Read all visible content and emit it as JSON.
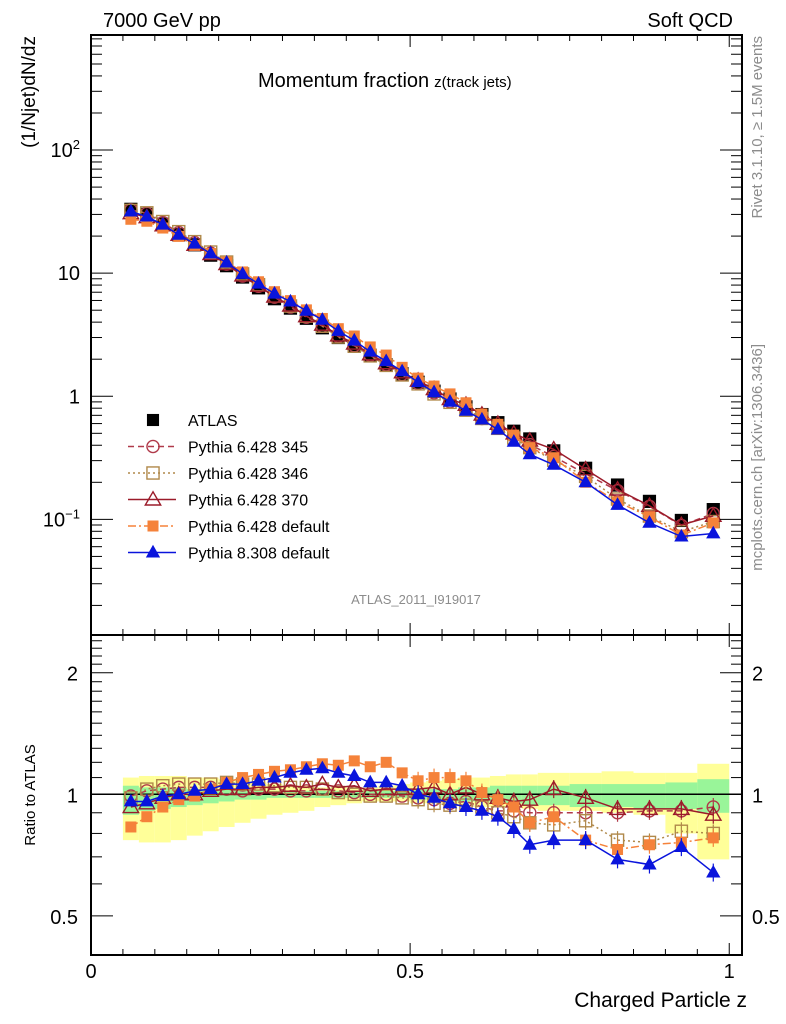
{
  "header": {
    "energy_label": "7000 GeV pp",
    "category_label": "Soft QCD"
  },
  "side_text": {
    "rivet": "Rivet 3.1.10, ≥ 1.5M events",
    "mcplots": "mcplots.cern.ch [arXiv:1306.3436]"
  },
  "chart_data": {
    "type": "scatter",
    "title": "Momentum fraction",
    "title_suffix": "z(track jets)",
    "analysis_id": "ATLAS_2011_I919017",
    "xlabel": "Charged Particle z",
    "ylabel": "(1/Njet)dN/dz",
    "ratio_ylabel": "Ratio to ATLAS",
    "xlim": [
      0,
      1.02
    ],
    "ylim": [
      0.0115,
      860
    ],
    "yscale": "log",
    "ratio_ylim": [
      0.4,
      2.48
    ],
    "ratio_yscale": "log",
    "x_ticks": [
      {
        "v": 0,
        "label": "0"
      },
      {
        "v": 0.5,
        "label": "0.5"
      },
      {
        "v": 1,
        "label": "1"
      }
    ],
    "y_ticks": [
      {
        "v": 100,
        "label": "10",
        "sup": "2"
      },
      {
        "v": 10,
        "label": "10",
        "sup": ""
      },
      {
        "v": 1,
        "label": "1",
        "sup": ""
      },
      {
        "v": 0.1,
        "label": "10",
        "sup": "−1"
      }
    ],
    "ratio_ticks": [
      {
        "v": 2,
        "label": "2"
      },
      {
        "v": 1,
        "label": "1"
      },
      {
        "v": 0.5,
        "label": "0.5"
      }
    ],
    "x": [
      0.0625,
      0.0875,
      0.1125,
      0.1375,
      0.1625,
      0.1875,
      0.2125,
      0.2375,
      0.2625,
      0.2875,
      0.3125,
      0.3375,
      0.3625,
      0.3875,
      0.4125,
      0.4375,
      0.4625,
      0.4875,
      0.5125,
      0.5375,
      0.5625,
      0.5875,
      0.6125,
      0.6375,
      0.6625,
      0.6875,
      0.725,
      0.775,
      0.825,
      0.875,
      0.925,
      0.975
    ],
    "x_halfwidth": [
      0.0125,
      0.0125,
      0.0125,
      0.0125,
      0.0125,
      0.0125,
      0.0125,
      0.0125,
      0.0125,
      0.0125,
      0.0125,
      0.0125,
      0.0125,
      0.0125,
      0.0125,
      0.0125,
      0.0125,
      0.0125,
      0.0125,
      0.0125,
      0.0125,
      0.0125,
      0.0125,
      0.0125,
      0.0125,
      0.0125,
      0.025,
      0.025,
      0.025,
      0.025,
      0.025,
      0.025
    ],
    "data": {
      "name": "ATLAS",
      "color": "#000000",
      "values": [
        33,
        30,
        25,
        20.5,
        17,
        14,
        11.5,
        9.3,
        7.6,
        6.2,
        5.2,
        4.3,
        3.6,
        3.0,
        2.55,
        2.15,
        1.8,
        1.52,
        1.3,
        1.1,
        0.95,
        0.82,
        0.71,
        0.61,
        0.52,
        0.45,
        0.36,
        0.26,
        0.19,
        0.14,
        0.098,
        0.12
      ],
      "band_inner_lo": [
        0.89,
        0.91,
        0.92,
        0.93,
        0.94,
        0.95,
        0.96,
        0.97,
        0.97,
        0.98,
        0.98,
        0.98,
        0.98,
        0.98,
        0.98,
        0.98,
        0.98,
        0.98,
        0.97,
        0.97,
        0.96,
        0.96,
        0.96,
        0.95,
        0.95,
        0.94,
        0.94,
        0.93,
        0.93,
        0.92,
        0.92,
        0.9
      ],
      "band_inner_hi": [
        1.05,
        1.04,
        1.04,
        1.04,
        1.03,
        1.03,
        1.03,
        1.03,
        1.02,
        1.02,
        1.02,
        1.02,
        1.02,
        1.02,
        1.02,
        1.02,
        1.02,
        1.02,
        1.03,
        1.03,
        1.03,
        1.04,
        1.04,
        1.05,
        1.05,
        1.05,
        1.05,
        1.06,
        1.06,
        1.06,
        1.07,
        1.09
      ],
      "band_outer_lo": [
        0.77,
        0.76,
        0.76,
        0.77,
        0.79,
        0.81,
        0.83,
        0.85,
        0.87,
        0.89,
        0.9,
        0.91,
        0.93,
        0.94,
        0.95,
        0.96,
        0.96,
        0.96,
        0.95,
        0.95,
        0.94,
        0.94,
        0.93,
        0.93,
        0.93,
        0.92,
        0.91,
        0.91,
        0.9,
        0.89,
        0.8,
        0.69
      ],
      "band_outer_hi": [
        1.1,
        1.11,
        1.11,
        1.11,
        1.1,
        1.1,
        1.09,
        1.08,
        1.07,
        1.06,
        1.05,
        1.05,
        1.04,
        1.04,
        1.04,
        1.04,
        1.05,
        1.06,
        1.07,
        1.08,
        1.09,
        1.1,
        1.1,
        1.11,
        1.12,
        1.12,
        1.13,
        1.13,
        1.14,
        1.13,
        1.13,
        1.19
      ]
    },
    "series": [
      {
        "name": "Pythia 6.428 345",
        "color": "#b03a4a",
        "marker": "open-circle",
        "line": "dashed",
        "ratios": [
          0.99,
          1.02,
          1.03,
          1.04,
          1.04,
          1.04,
          1.03,
          1.02,
          1.03,
          1.03,
          1.02,
          1.02,
          1.03,
          1.02,
          1.01,
          1.0,
          1.0,
          0.99,
          0.98,
          0.97,
          0.95,
          0.96,
          0.93,
          0.91,
          0.91,
          0.9,
          0.9,
          0.9,
          0.9,
          0.91,
          0.91,
          0.93
        ]
      },
      {
        "name": "Pythia 6.428 346",
        "color": "#b0894a",
        "marker": "open-square",
        "line": "dotted",
        "ratios": [
          0.98,
          1.03,
          1.05,
          1.06,
          1.06,
          1.06,
          1.07,
          1.06,
          1.06,
          1.05,
          1.04,
          1.04,
          1.03,
          1.01,
          1.0,
          0.99,
          0.99,
          0.98,
          0.97,
          0.95,
          0.94,
          0.94,
          0.93,
          0.9,
          0.88,
          0.85,
          0.84,
          0.86,
          0.77,
          0.76,
          0.81,
          0.8
        ]
      },
      {
        "name": "Pythia 6.428 370",
        "color": "#9b1b2a",
        "marker": "open-triangle",
        "line": "solid",
        "ratios": [
          0.93,
          0.95,
          0.98,
          1.0,
          1.0,
          1.02,
          1.03,
          1.03,
          1.04,
          1.04,
          1.05,
          1.04,
          1.06,
          1.04,
          1.05,
          1.02,
          1.03,
          1.03,
          1.03,
          1.04,
          1.0,
          1.04,
          1.0,
          0.98,
          0.96,
          0.97,
          1.03,
          0.98,
          0.92,
          0.92,
          0.92,
          0.89
        ]
      },
      {
        "name": "Pythia 6.428 default",
        "color": "#f5823a",
        "marker": "filled-square",
        "line": "dashdot",
        "ratios": [
          0.83,
          0.88,
          0.93,
          0.97,
          0.99,
          1.03,
          1.07,
          1.1,
          1.12,
          1.14,
          1.15,
          1.17,
          1.19,
          1.18,
          1.21,
          1.17,
          1.2,
          1.13,
          1.08,
          1.1,
          1.1,
          1.08,
          1.01,
          0.97,
          0.93,
          0.85,
          0.88,
          0.77,
          0.73,
          0.75,
          0.76,
          0.78
        ]
      },
      {
        "name": "Pythia 8.308 default",
        "color": "#0a14dc",
        "marker": "filled-triangle",
        "line": "solid",
        "ratios": [
          0.96,
          0.96,
          0.99,
          1.0,
          1.02,
          1.03,
          1.06,
          1.06,
          1.08,
          1.1,
          1.13,
          1.15,
          1.16,
          1.13,
          1.11,
          1.07,
          1.07,
          1.05,
          1.0,
          0.98,
          0.95,
          0.93,
          0.91,
          0.88,
          0.82,
          0.75,
          0.77,
          0.77,
          0.69,
          0.67,
          0.74,
          0.64
        ]
      }
    ],
    "band_colors": {
      "outer": "#ffff99",
      "inner": "#99f599"
    },
    "legend_position": "lower-left",
    "grid": false
  }
}
